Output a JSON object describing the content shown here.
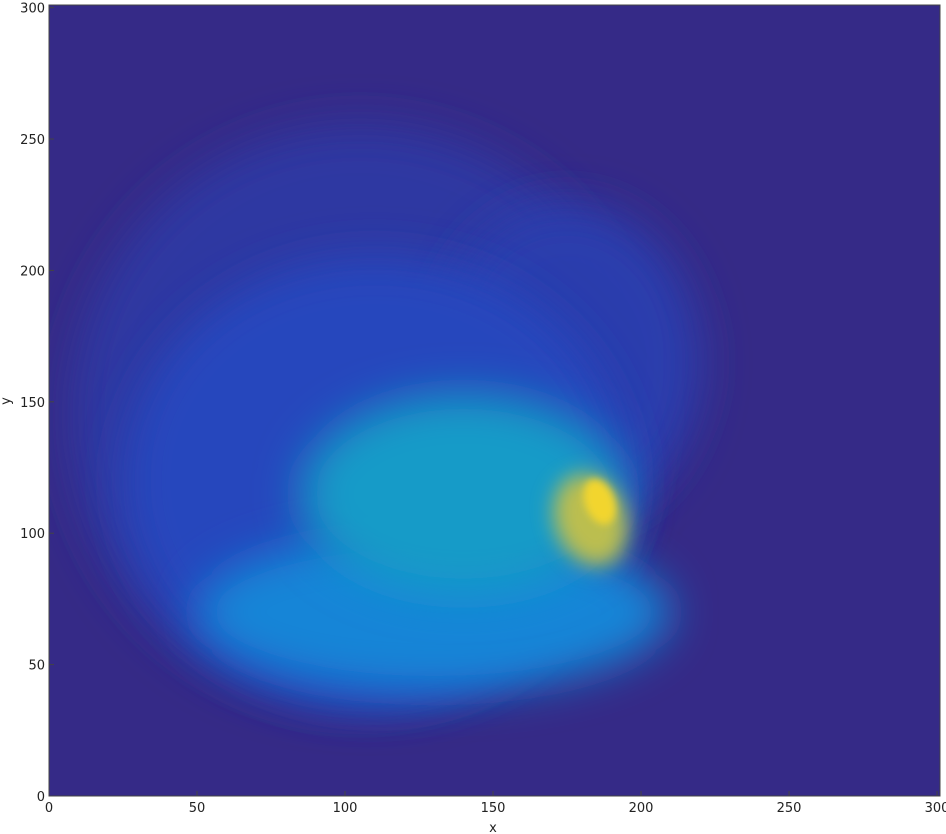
{
  "chart_data": {
    "type": "heatmap",
    "title": "",
    "xlabel": "x",
    "ylabel": "y",
    "xlim": [
      0,
      301
    ],
    "ylim": [
      0,
      301
    ],
    "x_ticks": [
      0,
      50,
      100,
      150,
      200,
      250,
      300
    ],
    "y_ticks": [
      0,
      50,
      100,
      150,
      200,
      250,
      300
    ],
    "grid": false,
    "colormap": "parula",
    "background_color": "#352a87",
    "features": [
      {
        "name": "outer-halo",
        "cx": 105,
        "cy": 145,
        "rx": 98,
        "ry": 110,
        "level": 0.05
      },
      {
        "name": "outer-ring-right",
        "cx": 175,
        "cy": 165,
        "rx": 45,
        "ry": 60,
        "level": 0.07
      },
      {
        "name": "mid-shell",
        "cx": 110,
        "cy": 120,
        "rx": 85,
        "ry": 85,
        "level": 0.1
      },
      {
        "name": "lower-arc",
        "cx": 130,
        "cy": 70,
        "rx": 80,
        "ry": 30,
        "level": 0.35
      },
      {
        "name": "core-lobe",
        "cx": 140,
        "cy": 115,
        "rx": 55,
        "ry": 38,
        "level": 0.45
      },
      {
        "name": "front-ridge",
        "cx": 183,
        "cy": 105,
        "rx": 12,
        "ry": 18,
        "level": 0.8
      },
      {
        "name": "hot-spot",
        "cx": 186,
        "cy": 112,
        "rx": 5,
        "ry": 9,
        "level": 0.95
      }
    ]
  }
}
